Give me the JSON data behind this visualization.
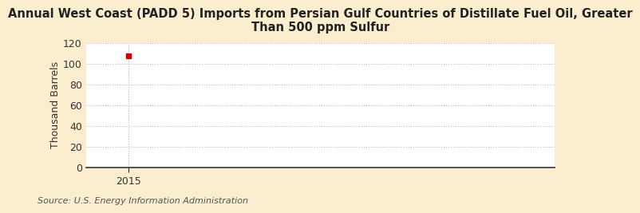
{
  "title": "Annual West Coast (PADD 5) Imports from Persian Gulf Countries of Distillate Fuel Oil, Greater\nThan 500 ppm Sulfur",
  "ylabel": "Thousand Barrels",
  "source": "Source: U.S. Energy Information Administration",
  "data_x": [
    2015
  ],
  "data_y": [
    107
  ],
  "marker_color": "#cc0000",
  "xlim": [
    2014.3,
    2022
  ],
  "ylim": [
    0,
    120
  ],
  "yticks": [
    0,
    20,
    40,
    60,
    80,
    100,
    120
  ],
  "xticks": [
    2015
  ],
  "figure_bg_color": "#faeecf",
  "plot_bg_color": "#ffffff",
  "grid_color": "#bbbbbb",
  "title_fontsize": 10.5,
  "axis_fontsize": 9,
  "source_fontsize": 8,
  "tick_label_color": "#333333",
  "spine_color": "#333333"
}
